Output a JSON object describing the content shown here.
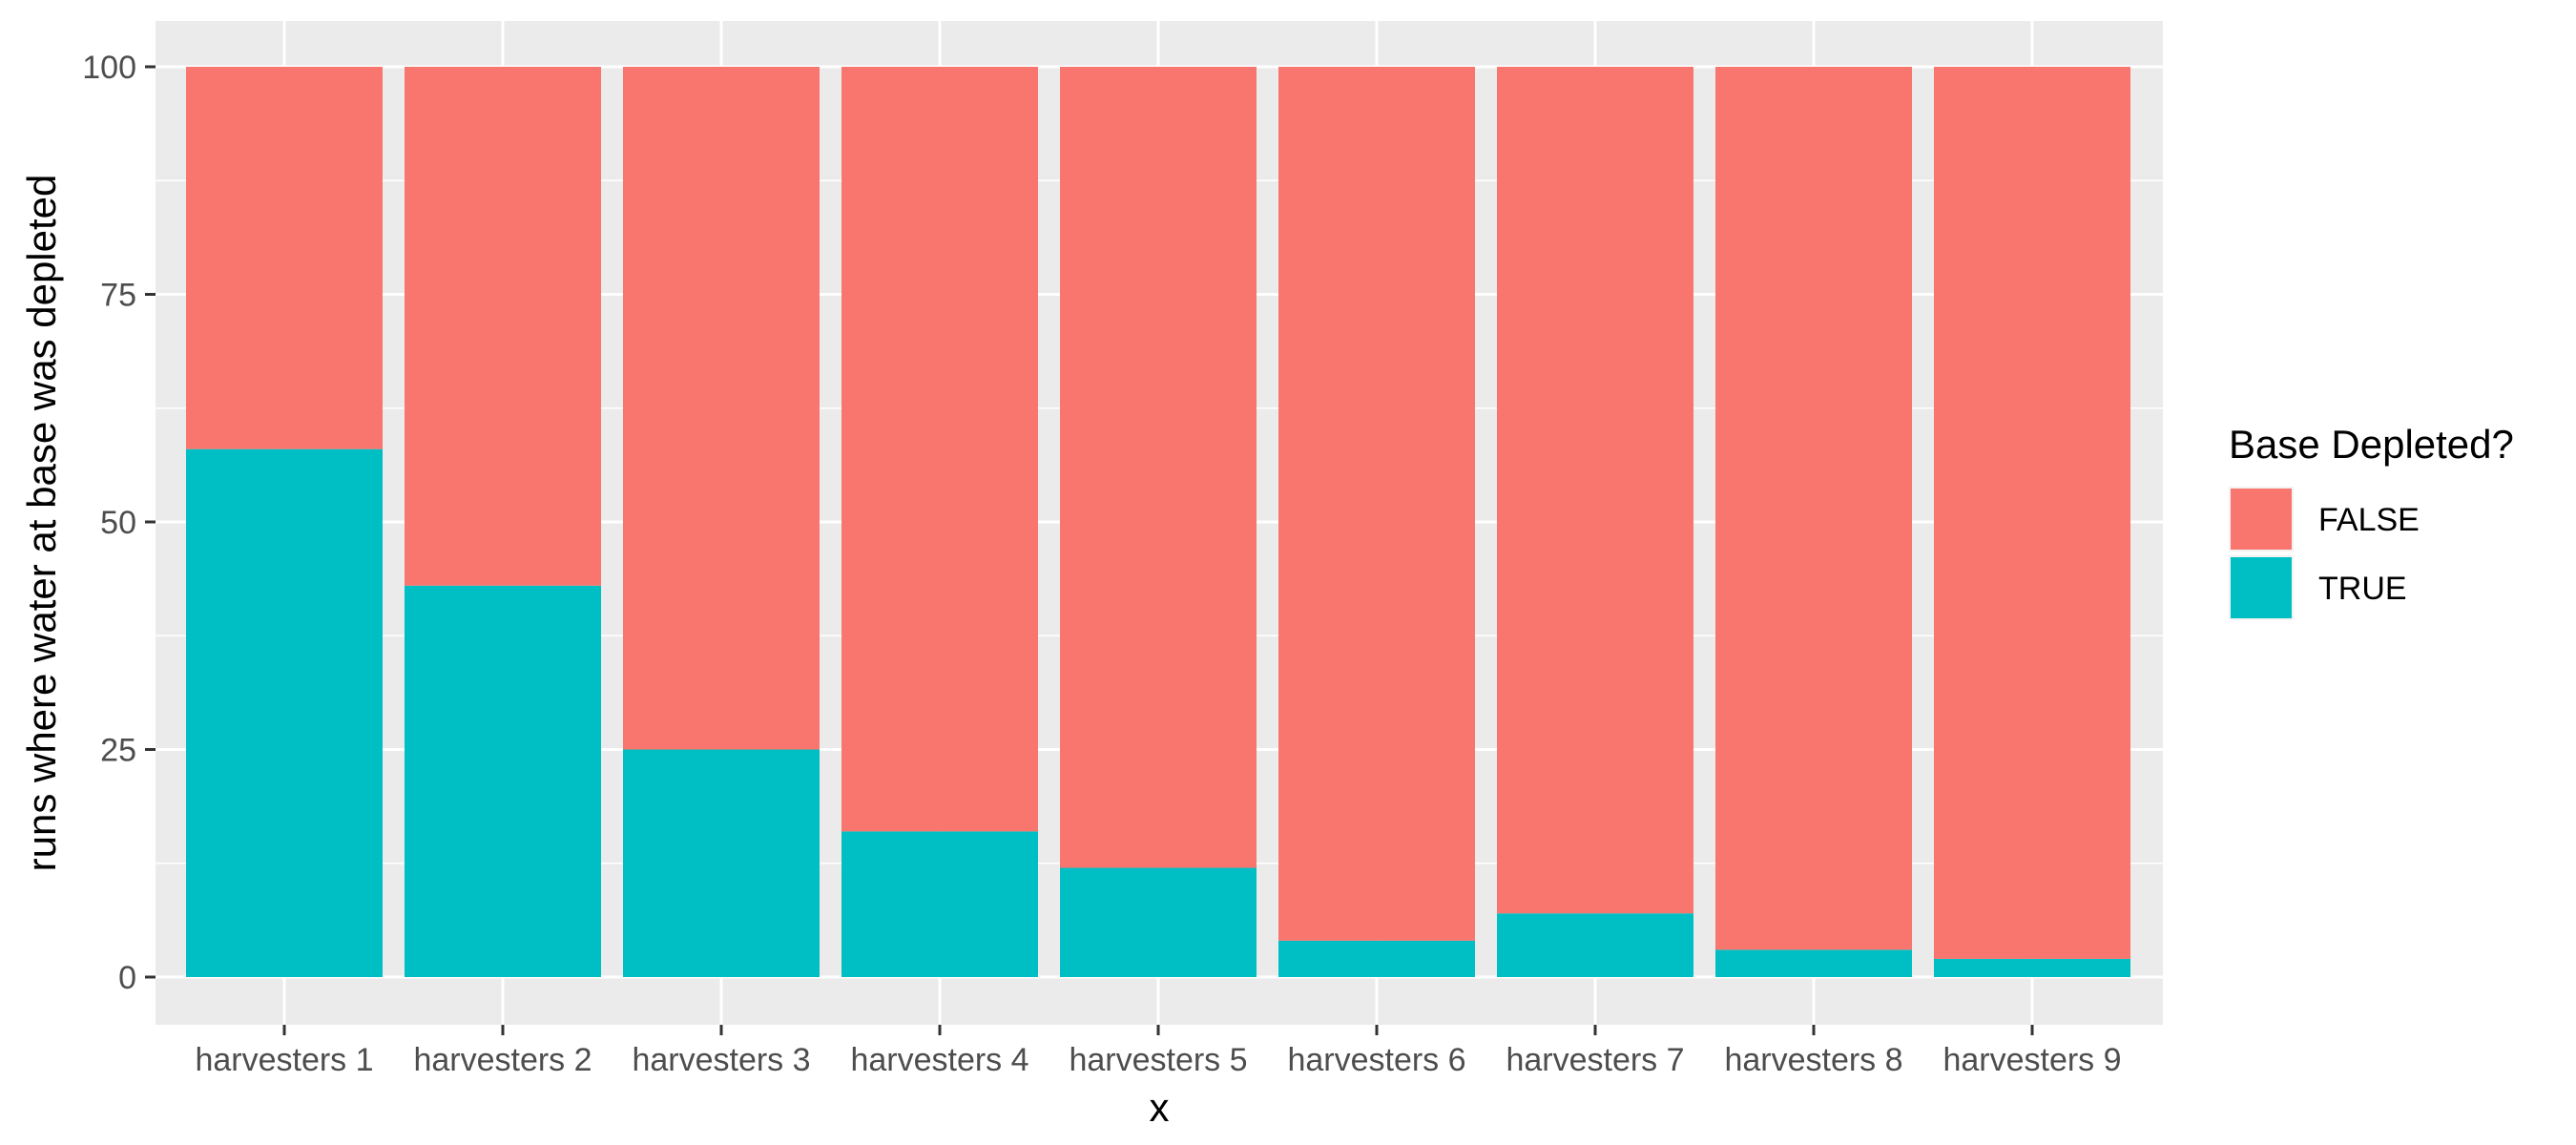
{
  "chart_data": {
    "type": "bar",
    "stacked": true,
    "title": "",
    "xlabel": "x",
    "ylabel": "runs where water at base was depleted",
    "ylim": [
      0,
      100
    ],
    "yticks": [
      0,
      25,
      50,
      75,
      100
    ],
    "categories": [
      "harvesters 1",
      "harvesters 2",
      "harvesters 3",
      "harvesters 4",
      "harvesters 5",
      "harvesters 6",
      "harvesters 7",
      "harvesters 8",
      "harvesters 9"
    ],
    "series": [
      {
        "name": "TRUE",
        "color": "#00BFC4",
        "values": [
          58,
          43,
          25,
          16,
          12,
          4,
          7,
          3,
          2
        ]
      },
      {
        "name": "FALSE",
        "color": "#F8766D",
        "values": [
          42,
          57,
          75,
          84,
          88,
          96,
          93,
          97,
          98
        ]
      }
    ],
    "legend": {
      "title": "Base Depleted?",
      "position": "right",
      "order": [
        "FALSE",
        "TRUE"
      ]
    },
    "grid": true,
    "panel_color": "#EBEBEB",
    "grid_color": "#FFFFFF"
  }
}
